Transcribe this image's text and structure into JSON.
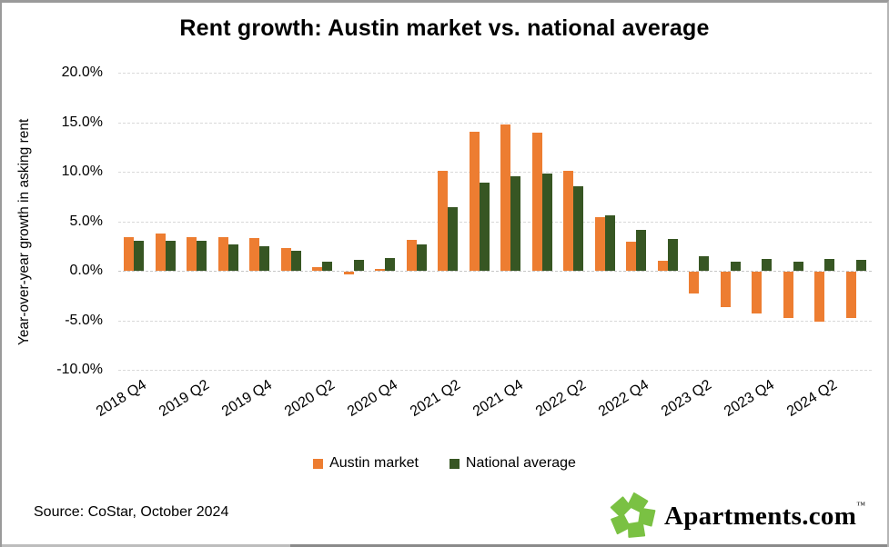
{
  "title": "Rent growth: Austin market vs. national average",
  "y_axis": {
    "title": "Year-over-year growth in asking rent",
    "tick_labels": [
      "20.0%",
      "15.0%",
      "10.0%",
      "5.0%",
      "0.0%",
      "-5.0%",
      "-10.0%"
    ],
    "tick_values": [
      20,
      15,
      10,
      5,
      0,
      -5,
      -10
    ]
  },
  "x_axis": {
    "visible_tick_labels": [
      "2018 Q4",
      "2019 Q2",
      "2019 Q4",
      "2020 Q2",
      "2020 Q4",
      "2021 Q2",
      "2021 Q4",
      "2022 Q2",
      "2022 Q4",
      "2023 Q2",
      "2023 Q4",
      "2024 Q2"
    ],
    "label_every": 2
  },
  "legend": [
    {
      "label": "Austin market",
      "color": "#ED7D31"
    },
    {
      "label": "National average",
      "color": "#375623"
    }
  ],
  "source_note": "Source: CoStar, October 2024",
  "logo": {
    "text": "Apartments.com",
    "tm": "™",
    "icon": "apartments-pinwheel-icon",
    "green": "#7AC143"
  },
  "colors": {
    "austin": "#ED7D31",
    "national": "#375623",
    "gridline": "#D9D9D9",
    "background": "#FFFFFF"
  },
  "chart_data": {
    "type": "bar",
    "title": "Rent growth: Austin market vs. national average",
    "ylabel": "Year-over-year growth in asking rent",
    "ylim": [
      -10,
      20
    ],
    "ytick_step": 5,
    "grid": true,
    "legend_position": "bottom",
    "categories": [
      "2018 Q4",
      "2019 Q1",
      "2019 Q2",
      "2019 Q3",
      "2019 Q4",
      "2020 Q1",
      "2020 Q2",
      "2020 Q3",
      "2020 Q4",
      "2021 Q1",
      "2021 Q2",
      "2021 Q3",
      "2021 Q4",
      "2022 Q1",
      "2022 Q2",
      "2022 Q3",
      "2022 Q4",
      "2023 Q1",
      "2023 Q2",
      "2023 Q3",
      "2023 Q4",
      "2024 Q1",
      "2024 Q2",
      "2024 Q3"
    ],
    "series": [
      {
        "name": "Austin market",
        "color": "#ED7D31",
        "values": [
          3.4,
          3.8,
          3.4,
          3.4,
          3.3,
          2.3,
          0.4,
          -0.3,
          0.2,
          3.1,
          10.1,
          14.0,
          14.8,
          13.9,
          10.1,
          5.4,
          2.9,
          1.0,
          -2.2,
          -3.6,
          -4.2,
          -4.7,
          -5.0,
          -4.7
        ]
      },
      {
        "name": "National average",
        "color": "#375623",
        "values": [
          3.0,
          3.0,
          3.0,
          2.7,
          2.5,
          2.0,
          0.9,
          1.1,
          1.3,
          2.7,
          6.4,
          8.9,
          9.5,
          9.8,
          8.5,
          5.6,
          4.1,
          3.2,
          1.5,
          0.9,
          1.2,
          0.9,
          1.2,
          1.1
        ]
      }
    ]
  }
}
